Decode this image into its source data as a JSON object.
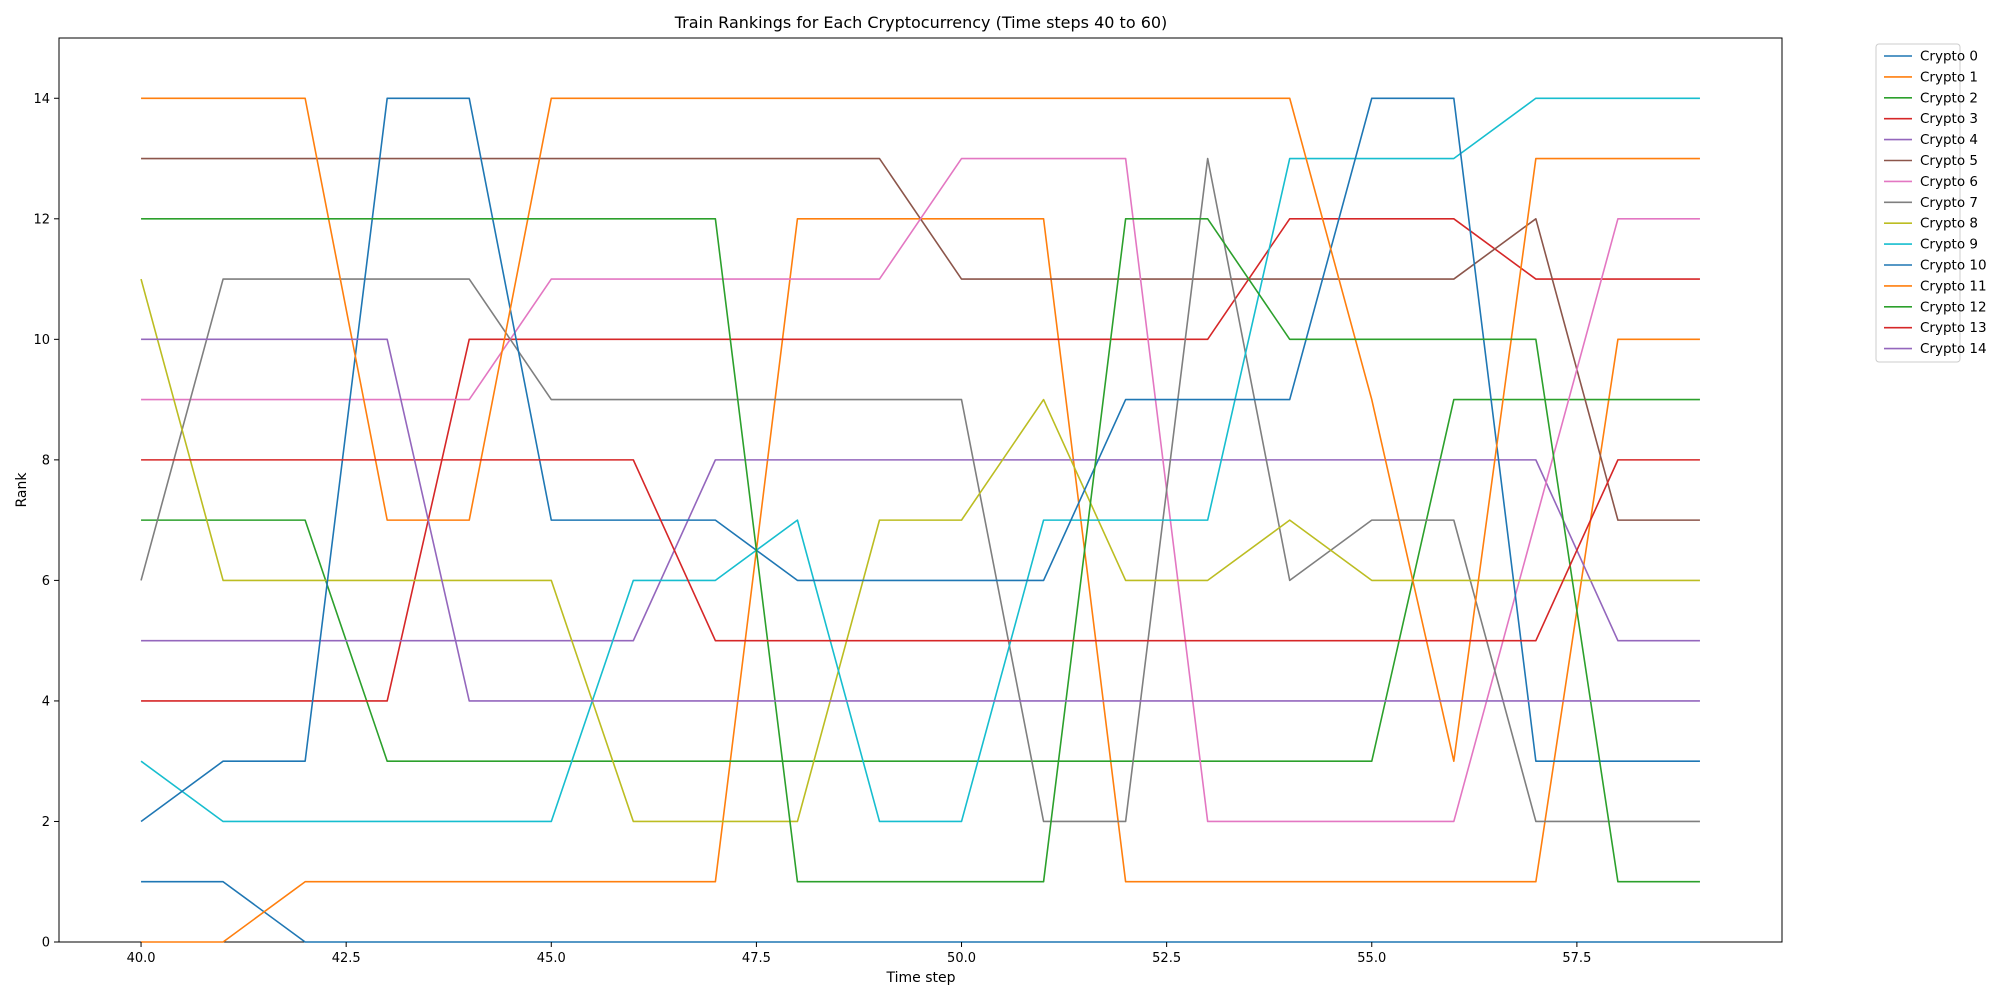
{
  "chart_data": {
    "type": "line",
    "title": "Train Rankings for Each Cryptocurrency (Time steps 40 to 60)",
    "xlabel": "Time step",
    "ylabel": "Rank",
    "xlim": [
      39,
      60
    ],
    "ylim": [
      0,
      15
    ],
    "xticks": [
      "40.0",
      "42.5",
      "45.0",
      "47.5",
      "50.0",
      "52.5",
      "55.0",
      "57.5"
    ],
    "yticks": [
      "0",
      "2",
      "4",
      "6",
      "8",
      "10",
      "12",
      "14"
    ],
    "grid": false,
    "legend_position": "outside-top-right",
    "x": [
      40,
      41,
      42,
      43,
      44,
      45,
      46,
      47,
      48,
      49,
      50,
      51,
      52,
      53,
      54,
      55,
      56,
      57,
      58,
      59
    ],
    "series": [
      {
        "name": "Crypto 0",
        "color": "#1f77b4",
        "values": [
          1,
          1,
          0,
          0,
          0,
          0,
          0,
          0,
          0,
          0,
          0,
          0,
          0,
          0,
          0,
          0,
          0,
          0,
          0,
          0
        ]
      },
      {
        "name": "Crypto 1",
        "color": "#ff7f0e",
        "values": [
          0,
          0,
          1,
          1,
          1,
          1,
          1,
          1,
          12,
          12,
          12,
          12,
          1,
          1,
          1,
          1,
          1,
          1,
          10,
          10
        ]
      },
      {
        "name": "Crypto 2",
        "color": "#2ca02c",
        "values": [
          7,
          7,
          7,
          3,
          3,
          3,
          3,
          3,
          3,
          3,
          3,
          3,
          3,
          3,
          3,
          3,
          9,
          9,
          9,
          9
        ]
      },
      {
        "name": "Crypto 3",
        "color": "#d62728",
        "values": [
          4,
          4,
          4,
          4,
          10,
          10,
          10,
          10,
          10,
          10,
          10,
          10,
          10,
          10,
          12,
          12,
          12,
          11,
          11,
          11
        ]
      },
      {
        "name": "Crypto 4",
        "color": "#9467bd",
        "values": [
          5,
          5,
          5,
          5,
          5,
          5,
          5,
          8,
          8,
          8,
          8,
          8,
          8,
          8,
          8,
          8,
          8,
          8,
          5,
          5
        ]
      },
      {
        "name": "Crypto 5",
        "color": "#8c564b",
        "values": [
          13,
          13,
          13,
          13,
          13,
          13,
          13,
          13,
          13,
          13,
          11,
          11,
          11,
          11,
          11,
          11,
          11,
          12,
          7,
          7
        ]
      },
      {
        "name": "Crypto 6",
        "color": "#e377c2",
        "values": [
          9,
          9,
          9,
          9,
          9,
          11,
          11,
          11,
          11,
          11,
          13,
          13,
          13,
          2,
          2,
          2,
          2,
          7,
          12,
          12
        ]
      },
      {
        "name": "Crypto 7",
        "color": "#7f7f7f",
        "values": [
          6,
          11,
          11,
          11,
          11,
          9,
          9,
          9,
          9,
          9,
          9,
          2,
          2,
          13,
          6,
          7,
          7,
          2,
          2,
          2
        ]
      },
      {
        "name": "Crypto 8",
        "color": "#bcbd22",
        "values": [
          11,
          6,
          6,
          6,
          6,
          6,
          2,
          2,
          2,
          7,
          7,
          9,
          6,
          6,
          7,
          6,
          6,
          6,
          6,
          6
        ]
      },
      {
        "name": "Crypto 9",
        "color": "#17becf",
        "values": [
          3,
          2,
          2,
          2,
          2,
          2,
          6,
          6,
          7,
          2,
          2,
          7,
          7,
          7,
          13,
          13,
          13,
          14,
          14,
          14
        ]
      },
      {
        "name": "Crypto 10",
        "color": "#1f77b4",
        "values": [
          2,
          3,
          3,
          14,
          14,
          7,
          7,
          7,
          6,
          6,
          6,
          6,
          9,
          9,
          9,
          14,
          14,
          3,
          3,
          3
        ]
      },
      {
        "name": "Crypto 11",
        "color": "#ff7f0e",
        "values": [
          14,
          14,
          14,
          7,
          7,
          14,
          14,
          14,
          14,
          14,
          14,
          14,
          14,
          14,
          14,
          9,
          3,
          13,
          13,
          13
        ]
      },
      {
        "name": "Crypto 12",
        "color": "#2ca02c",
        "values": [
          12,
          12,
          12,
          12,
          12,
          12,
          12,
          12,
          1,
          1,
          1,
          1,
          12,
          12,
          10,
          10,
          10,
          10,
          1,
          1
        ]
      },
      {
        "name": "Crypto 13",
        "color": "#d62728",
        "values": [
          8,
          8,
          8,
          8,
          8,
          8,
          8,
          5,
          5,
          5,
          5,
          5,
          5,
          5,
          5,
          5,
          5,
          5,
          8,
          8
        ]
      },
      {
        "name": "Crypto 14",
        "color": "#9467bd",
        "values": [
          10,
          10,
          10,
          10,
          4,
          4,
          4,
          4,
          4,
          4,
          4,
          4,
          4,
          4,
          4,
          4,
          4,
          4,
          4,
          4
        ]
      }
    ]
  }
}
